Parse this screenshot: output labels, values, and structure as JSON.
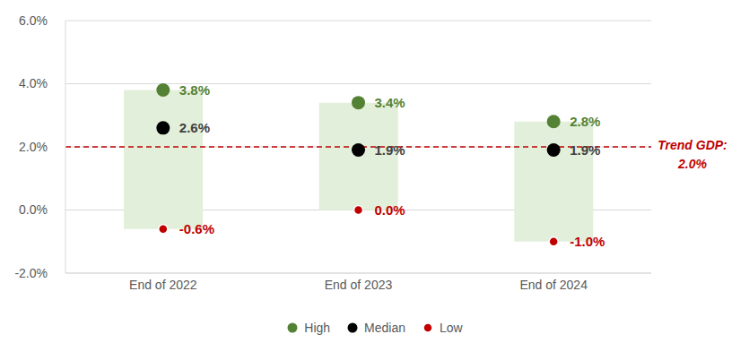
{
  "chart_data": {
    "type": "range",
    "categories": [
      "End of 2022",
      "End of 2023",
      "End of 2024"
    ],
    "color": "#e2efda",
    "series": [
      {
        "name": "High",
        "color": "#548235",
        "marker": "circle",
        "values": [
          3.8,
          3.4,
          2.8
        ],
        "value_labels": [
          "3.8%",
          "3.4%",
          "2.8%"
        ]
      },
      {
        "name": "Median",
        "color": "#000000",
        "marker": "circle",
        "values": [
          2.6,
          1.9,
          1.9
        ],
        "value_labels": [
          "2.6%",
          "1.9%",
          "1.9%"
        ]
      },
      {
        "name": "Low",
        "color": "#c00000",
        "marker": "circle",
        "values": [
          -0.6,
          0.0,
          -1.0
        ],
        "value_labels": [
          "-0.6%",
          "0.0%",
          "-1.0%"
        ]
      }
    ],
    "ylim": [
      -2,
      6
    ],
    "yticks": [
      {
        "value": -2,
        "label": "-2.0%"
      },
      {
        "value": 0,
        "label": "0.0%"
      },
      {
        "value": 2,
        "label": "2.0%"
      },
      {
        "value": 4,
        "label": "4.0%"
      },
      {
        "value": 6,
        "label": "6.0%"
      }
    ],
    "grid": true,
    "legend": "bottom",
    "data_labels": true,
    "reference_line": {
      "value": 2.0,
      "label": [
        "Trend GDP:",
        "2.0%"
      ],
      "color": "#c00000",
      "line_style": "dashed"
    }
  }
}
